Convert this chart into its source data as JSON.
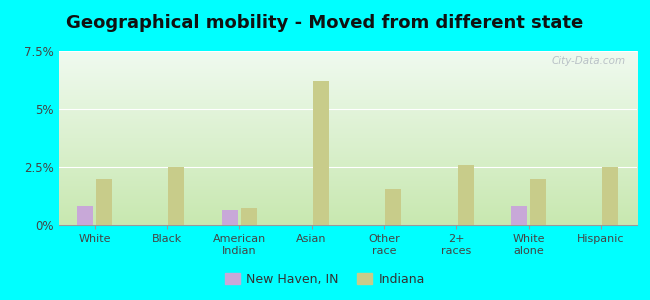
{
  "title": "Geographical mobility - Moved from different state",
  "categories": [
    "White",
    "Black",
    "American\nIndian",
    "Asian",
    "Other\nrace",
    "2+\nraces",
    "White\nalone",
    "Hispanic"
  ],
  "new_haven_values": [
    0.8,
    0.0,
    0.65,
    0.0,
    0.0,
    0.0,
    0.8,
    0.0
  ],
  "indiana_values": [
    2.0,
    2.5,
    0.75,
    6.2,
    1.55,
    2.6,
    2.0,
    2.5
  ],
  "new_haven_color": "#c8a8d8",
  "indiana_color": "#c8cc8a",
  "ylim": [
    0,
    7.5
  ],
  "yticks": [
    0,
    2.5,
    5.0,
    7.5
  ],
  "ytick_labels": [
    "0%",
    "2.5%",
    "5%",
    "7.5%"
  ],
  "plot_bg_top": "#e8f5e8",
  "plot_bg_bottom": "#c8e8b0",
  "outer_background": "#00ffff",
  "title_fontsize": 13,
  "legend_new_haven": "New Haven, IN",
  "legend_indiana": "Indiana",
  "watermark": "City-Data.com"
}
